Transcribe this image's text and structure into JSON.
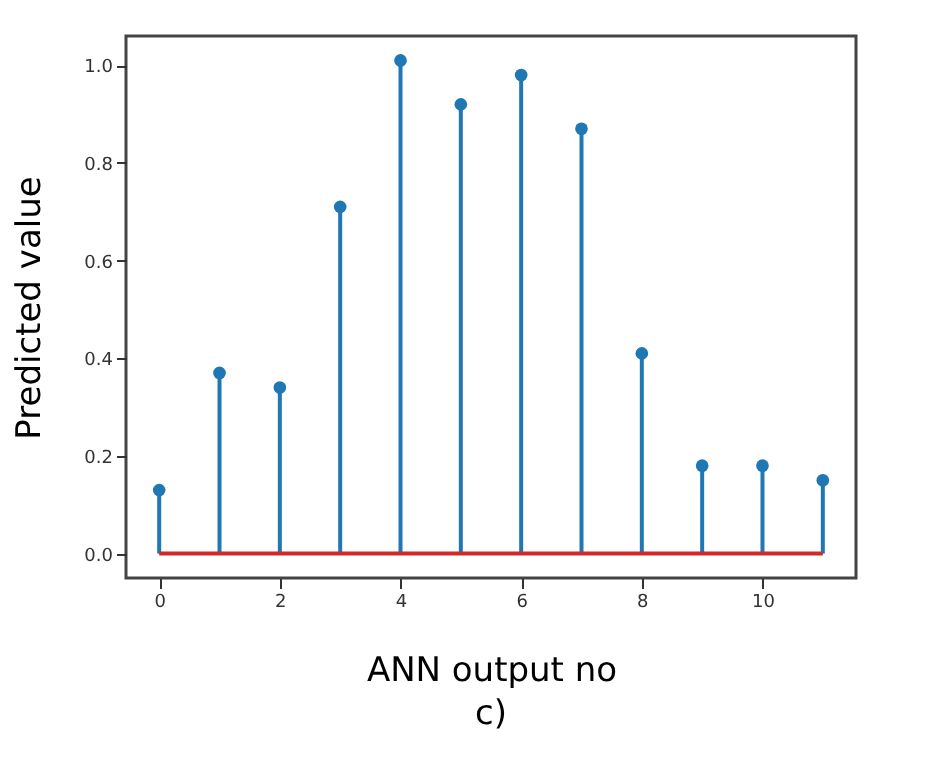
{
  "chart_data": {
    "type": "lollipop",
    "xlabel": "ANN output no",
    "ylabel": "Predicted value",
    "x": [
      0,
      1,
      2,
      3,
      4,
      5,
      6,
      7,
      8,
      9,
      10,
      11
    ],
    "series": [
      {
        "color": "#1f77b4",
        "values": [
          0.13,
          0.37,
          0.34,
          0.71,
          1.01,
          0.92,
          0.98,
          0.87,
          0.41,
          0.18,
          0.18,
          0.15
        ]
      }
    ],
    "xlim": [
      -0.55,
      11.55
    ],
    "xticks": [
      0,
      2,
      4,
      6,
      8,
      10
    ],
    "ylim": [
      -0.05,
      1.06
    ],
    "yticks": [
      {
        "value": 0,
        "label": "0.0"
      },
      0.2,
      0.4,
      0.6,
      0.8,
      {
        "value": 1,
        "label": "1.0"
      }
    ],
    "ref_lines": [
      {
        "axis": "y",
        "value": 0,
        "color": "#d62728"
      }
    ],
    "marker": "circle",
    "annotations": [
      "c)"
    ]
  }
}
